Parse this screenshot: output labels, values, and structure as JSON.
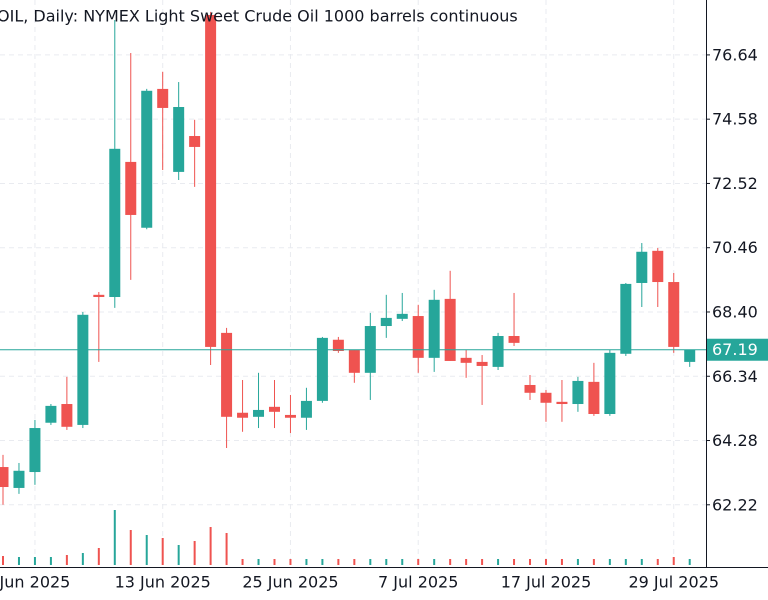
{
  "chart_data": {
    "type": "candlestick",
    "title": "OIL, Daily:  NYMEX Light Sweet Crude Oil 1000 barrels continuous",
    "categories": [
      null,
      null,
      "Jun 2025",
      null,
      null,
      null,
      null,
      null,
      null,
      null,
      "13 Jun 2025",
      null,
      null,
      null,
      null,
      null,
      null,
      null,
      "25 Jun 2025",
      null,
      null,
      null,
      null,
      null,
      null,
      null,
      "7 Jul 2025",
      null,
      null,
      null,
      null,
      null,
      null,
      null,
      "17 Jul 2025",
      null,
      null,
      null,
      null,
      null,
      null,
      null,
      "29 Jul 2025",
      null
    ],
    "open": [
      63.43,
      62.76,
      63.27,
      64.85,
      65.45,
      64.78,
      68.95,
      68.88,
      73.21,
      71.1,
      75.55,
      72.89,
      74.04,
      77.92,
      67.73,
      65.17,
      65.04,
      65.36,
      65.1,
      65.01,
      65.55,
      67.51,
      67.18,
      66.45,
      67.95,
      68.18,
      68.27,
      66.93,
      68.82,
      66.93,
      66.8,
      66.64,
      67.63,
      66.06,
      65.81,
      65.52,
      65.45,
      66.16,
      65.13,
      67.06,
      69.33,
      70.36,
      69.36,
      66.8
    ],
    "high": [
      63.82,
      63.56,
      64.94,
      65.45,
      66.32,
      68.4,
      69.04,
      77.76,
      76.7,
      75.55,
      76.1,
      75.77,
      74.56,
      78.02,
      67.89,
      66.22,
      66.45,
      66.22,
      65.74,
      65.97,
      67.6,
      67.6,
      67.18,
      68.37,
      68.95,
      69.01,
      68.63,
      69.11,
      69.72,
      67.18,
      67.02,
      67.73,
      69.01,
      66.38,
      65.9,
      66.22,
      66.32,
      66.77,
      67.18,
      69.33,
      70.61,
      70.45,
      69.65,
      67.19
    ],
    "low": [
      62.22,
      62.57,
      62.86,
      64.78,
      64.62,
      64.68,
      66.8,
      68.53,
      69.43,
      71.05,
      72.95,
      72.63,
      72.41,
      66.7,
      64.04,
      64.56,
      64.68,
      64.68,
      64.52,
      64.62,
      65.49,
      67.09,
      66.13,
      65.58,
      67.57,
      68.11,
      66.45,
      66.48,
      66.83,
      66.29,
      65.42,
      66.54,
      67.31,
      65.58,
      64.88,
      64.88,
      65.2,
      65.07,
      65.07,
      66.99,
      68.56,
      68.56,
      67.09,
      66.64
    ],
    "close": [
      62.79,
      63.31,
      64.68,
      65.39,
      64.72,
      68.31,
      68.88,
      73.63,
      71.51,
      75.49,
      74.94,
      74.97,
      73.69,
      67.28,
      65.04,
      65.01,
      65.26,
      65.2,
      65.01,
      65.55,
      67.57,
      67.15,
      66.45,
      67.95,
      68.21,
      68.34,
      66.93,
      68.79,
      66.83,
      66.77,
      66.67,
      67.63,
      67.41,
      65.81,
      65.49,
      65.45,
      66.19,
      65.13,
      67.09,
      69.3,
      70.33,
      69.36,
      67.28,
      67.19
    ],
    "volume": [
      9,
      8,
      8,
      8,
      10,
      12,
      17,
      55,
      35,
      30,
      27,
      20,
      24,
      38,
      32,
      6,
      6,
      6,
      6,
      6,
      6,
      6,
      6,
      6,
      6,
      6,
      6,
      6,
      6,
      6,
      6,
      6,
      6,
      6,
      6,
      6,
      6,
      6,
      6,
      6,
      6,
      6,
      8,
      6
    ],
    "up_color": "#26a69a",
    "down_color": "#ef5350",
    "ylim": [
      60.29,
      78.4
    ],
    "yticks": [
      62.22,
      64.28,
      66.34,
      {
        "value": 68.4,
        "label": "68.40"
      },
      70.46,
      72.52,
      74.58,
      76.64
    ],
    "last_price": 67.19,
    "grid": true
  }
}
